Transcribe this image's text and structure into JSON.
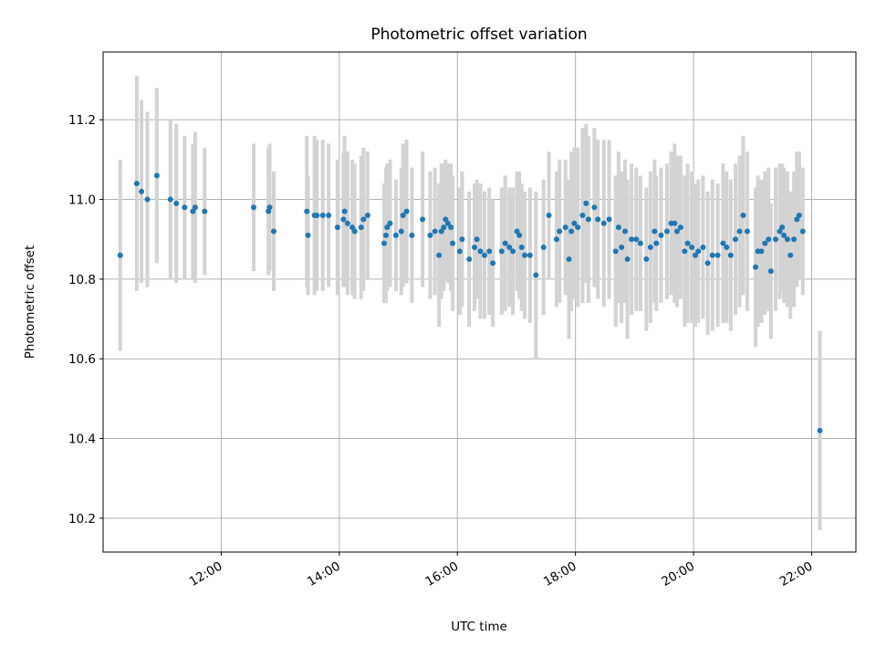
{
  "chart_data": {
    "type": "scatter",
    "title": "Photometric offset variation",
    "xlabel": "UTC time",
    "ylabel": "Photometric offset",
    "x_unit": "hours (UTC)",
    "xlim": [
      10.0,
      22.75
    ],
    "ylim": [
      10.115,
      11.37
    ],
    "x_ticks": [
      {
        "value": 12,
        "label": "12:00"
      },
      {
        "value": 14,
        "label": "14:00"
      },
      {
        "value": 16,
        "label": "16:00"
      },
      {
        "value": 18,
        "label": "18:00"
      },
      {
        "value": 20,
        "label": "20:00"
      },
      {
        "value": 22,
        "label": "22:00"
      }
    ],
    "y_ticks": [
      {
        "value": 10.2,
        "label": "10.2"
      },
      {
        "value": 10.4,
        "label": "10.4"
      },
      {
        "value": 10.6,
        "label": "10.6"
      },
      {
        "value": 10.8,
        "label": "10.8"
      },
      {
        "value": 11.0,
        "label": "11.0"
      },
      {
        "value": 11.2,
        "label": "11.2"
      }
    ],
    "grid": true,
    "colors": {
      "point": "#1f77b4",
      "errorbar": "#d3d3d3",
      "grid": "#b0b0b0"
    },
    "series": [
      {
        "points": [
          [
            10.29,
            10.86,
            0.24
          ],
          [
            10.57,
            11.04,
            0.27
          ],
          [
            10.65,
            11.02,
            0.23
          ],
          [
            10.75,
            11.0,
            0.22
          ],
          [
            10.91,
            11.06,
            0.22
          ],
          [
            11.14,
            11.0,
            0.2
          ],
          [
            11.24,
            10.99,
            0.2
          ],
          [
            11.38,
            10.98,
            0.18
          ],
          [
            11.52,
            10.97,
            0.17
          ],
          [
            11.56,
            10.98,
            0.19
          ],
          [
            11.72,
            10.97,
            0.16
          ],
          [
            12.55,
            10.98,
            0.16
          ],
          [
            12.8,
            10.97,
            0.16
          ],
          [
            12.82,
            10.98,
            0.16
          ],
          [
            12.89,
            10.92,
            0.15
          ],
          [
            13.45,
            10.97,
            0.19
          ],
          [
            13.47,
            10.91,
            0.15
          ],
          [
            13.58,
            10.96,
            0.2
          ],
          [
            13.62,
            10.96,
            0.19
          ],
          [
            13.72,
            10.96,
            0.19
          ],
          [
            13.82,
            10.96,
            0.18
          ],
          [
            13.97,
            10.93,
            0.17
          ],
          [
            14.07,
            10.95,
            0.17
          ],
          [
            14.09,
            10.97,
            0.19
          ],
          [
            14.14,
            10.94,
            0.18
          ],
          [
            14.22,
            10.93,
            0.17
          ],
          [
            14.26,
            10.92,
            0.17
          ],
          [
            14.37,
            10.93,
            0.18
          ],
          [
            14.41,
            10.95,
            0.18
          ],
          [
            14.48,
            10.96,
            0.16
          ],
          [
            14.76,
            10.89,
            0.15
          ],
          [
            14.79,
            10.91,
            0.17
          ],
          [
            14.81,
            10.93,
            0.16
          ],
          [
            14.86,
            10.94,
            0.16
          ],
          [
            14.96,
            10.91,
            0.14
          ],
          [
            15.05,
            10.92,
            0.16
          ],
          [
            15.08,
            10.96,
            0.18
          ],
          [
            15.14,
            10.97,
            0.18
          ],
          [
            15.23,
            10.91,
            0.17
          ],
          [
            15.41,
            10.95,
            0.17
          ],
          [
            15.54,
            10.91,
            0.16
          ],
          [
            15.62,
            10.92,
            0.16
          ],
          [
            15.69,
            10.86,
            0.18
          ],
          [
            15.73,
            10.92,
            0.17
          ],
          [
            15.77,
            10.93,
            0.16
          ],
          [
            15.8,
            10.95,
            0.15
          ],
          [
            15.84,
            10.94,
            0.15
          ],
          [
            15.89,
            10.93,
            0.16
          ],
          [
            15.92,
            10.89,
            0.17
          ],
          [
            16.04,
            10.87,
            0.16
          ],
          [
            16.08,
            10.9,
            0.17
          ],
          [
            16.2,
            10.85,
            0.17
          ],
          [
            16.29,
            10.88,
            0.16
          ],
          [
            16.33,
            10.9,
            0.15
          ],
          [
            16.39,
            10.87,
            0.17
          ],
          [
            16.46,
            10.86,
            0.16
          ],
          [
            16.54,
            10.87,
            0.16
          ],
          [
            16.6,
            10.84,
            0.16
          ],
          [
            16.75,
            10.87,
            0.16
          ],
          [
            16.81,
            10.89,
            0.17
          ],
          [
            16.88,
            10.88,
            0.15
          ],
          [
            16.94,
            10.87,
            0.16
          ],
          [
            17.01,
            10.92,
            0.15
          ],
          [
            17.05,
            10.91,
            0.16
          ],
          [
            17.09,
            10.88,
            0.16
          ],
          [
            17.14,
            10.86,
            0.16
          ],
          [
            17.23,
            10.86,
            0.17
          ],
          [
            17.33,
            10.81,
            0.21
          ],
          [
            17.46,
            10.88,
            0.17
          ],
          [
            17.55,
            10.96,
            0.16
          ],
          [
            17.68,
            10.9,
            0.17
          ],
          [
            17.73,
            10.92,
            0.18
          ],
          [
            17.83,
            10.93,
            0.17
          ],
          [
            17.89,
            10.85,
            0.2
          ],
          [
            17.93,
            10.92,
            0.2
          ],
          [
            17.98,
            10.94,
            0.19
          ],
          [
            18.04,
            10.93,
            0.2
          ],
          [
            18.12,
            10.96,
            0.22
          ],
          [
            18.18,
            10.99,
            0.2
          ],
          [
            18.22,
            10.95,
            0.21
          ],
          [
            18.32,
            10.98,
            0.2
          ],
          [
            18.38,
            10.95,
            0.2
          ],
          [
            18.48,
            10.94,
            0.21
          ],
          [
            18.57,
            10.95,
            0.2
          ],
          [
            18.68,
            10.87,
            0.19
          ],
          [
            18.73,
            10.93,
            0.19
          ],
          [
            18.78,
            10.88,
            0.19
          ],
          [
            18.84,
            10.92,
            0.18
          ],
          [
            18.88,
            10.85,
            0.2
          ],
          [
            18.95,
            10.9,
            0.19
          ],
          [
            19.03,
            10.9,
            0.18
          ],
          [
            19.1,
            10.89,
            0.17
          ],
          [
            19.2,
            10.85,
            0.18
          ],
          [
            19.27,
            10.88,
            0.19
          ],
          [
            19.34,
            10.92,
            0.18
          ],
          [
            19.37,
            10.89,
            0.17
          ],
          [
            19.45,
            10.91,
            0.17
          ],
          [
            19.55,
            10.92,
            0.17
          ],
          [
            19.62,
            10.94,
            0.18
          ],
          [
            19.68,
            10.94,
            0.2
          ],
          [
            19.72,
            10.92,
            0.19
          ],
          [
            19.78,
            10.93,
            0.18
          ],
          [
            19.85,
            10.87,
            0.19
          ],
          [
            19.9,
            10.89,
            0.2
          ],
          [
            19.97,
            10.88,
            0.19
          ],
          [
            20.03,
            10.86,
            0.18
          ],
          [
            20.08,
            10.87,
            0.18
          ],
          [
            20.16,
            10.88,
            0.18
          ],
          [
            20.24,
            10.84,
            0.18
          ],
          [
            20.32,
            10.86,
            0.19
          ],
          [
            20.41,
            10.86,
            0.18
          ],
          [
            20.5,
            10.89,
            0.2
          ],
          [
            20.56,
            10.88,
            0.19
          ],
          [
            20.63,
            10.86,
            0.19
          ],
          [
            20.71,
            10.9,
            0.19
          ],
          [
            20.78,
            10.92,
            0.19
          ],
          [
            20.84,
            10.96,
            0.2
          ],
          [
            20.91,
            10.92,
            0.2
          ],
          [
            21.05,
            10.83,
            0.2
          ],
          [
            21.09,
            10.87,
            0.19
          ],
          [
            21.15,
            10.87,
            0.18
          ],
          [
            21.21,
            10.89,
            0.18
          ],
          [
            21.27,
            10.9,
            0.18
          ],
          [
            21.31,
            10.82,
            0.17
          ],
          [
            21.39,
            10.9,
            0.18
          ],
          [
            21.46,
            10.92,
            0.17
          ],
          [
            21.5,
            10.93,
            0.16
          ],
          [
            21.53,
            10.91,
            0.17
          ],
          [
            21.59,
            10.9,
            0.17
          ],
          [
            21.64,
            10.86,
            0.16
          ],
          [
            21.7,
            10.9,
            0.17
          ],
          [
            21.75,
            10.95,
            0.17
          ],
          [
            21.79,
            10.96,
            0.16
          ],
          [
            21.85,
            10.92,
            0.16
          ],
          [
            22.14,
            10.42,
            0.25
          ]
        ]
      }
    ]
  }
}
